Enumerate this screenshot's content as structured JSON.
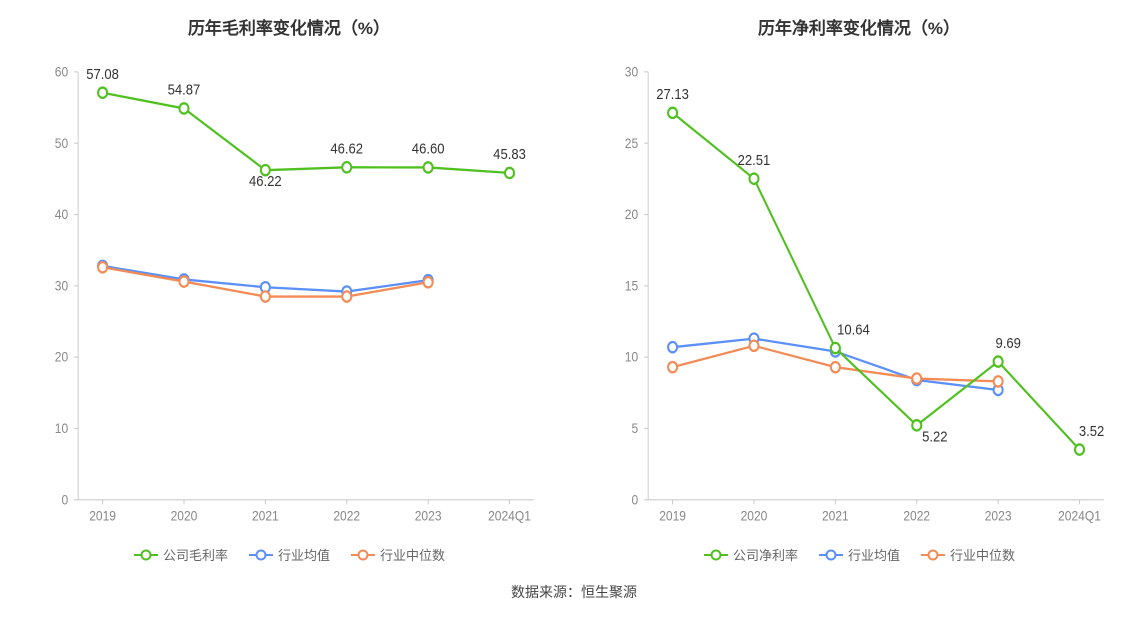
{
  "source_label": "数据来源：",
  "source_value": "恒生聚源",
  "colors": {
    "company": "#50c020",
    "industry_avg": "#5b8ff9",
    "industry_median": "#f28b55",
    "axis_line": "#cccccc",
    "axis_text": "#888888",
    "title_text": "#333333",
    "datalabel_text": "#333333",
    "background": "#ffffff"
  },
  "marker": {
    "radius": 4.5,
    "inner_fill": "#ffffff",
    "stroke_width": 2
  },
  "line_width": 2,
  "font": {
    "title_size": 17,
    "title_weight": 700,
    "axis_size": 12,
    "datalabel_size": 13,
    "legend_size": 13
  },
  "charts": [
    {
      "id": "gross_margin",
      "title": "历年毛利率变化情况（%）",
      "categories": [
        "2019",
        "2020",
        "2021",
        "2022",
        "2023",
        "2024Q1"
      ],
      "y": {
        "min": 0,
        "max": 60,
        "ticks": [
          0,
          10,
          20,
          30,
          40,
          50,
          60
        ]
      },
      "series": [
        {
          "key": "company",
          "label": "公司毛利率",
          "color_key": "company",
          "values": [
            57.08,
            54.87,
            46.22,
            46.62,
            46.6,
            45.83
          ],
          "show_value_labels": true,
          "value_label_dy": [
            -12,
            -12,
            14,
            -12,
            -12,
            -12
          ]
        },
        {
          "key": "industry_avg",
          "label": "行业均值",
          "color_key": "industry_avg",
          "values": [
            32.8,
            30.9,
            29.8,
            29.2,
            30.8,
            null
          ],
          "show_value_labels": false
        },
        {
          "key": "industry_median",
          "label": "行业中位数",
          "color_key": "industry_median",
          "values": [
            32.6,
            30.6,
            28.5,
            28.5,
            30.5,
            null
          ],
          "show_value_labels": false
        }
      ],
      "legend": [
        "公司毛利率",
        "行业均值",
        "行业中位数"
      ]
    },
    {
      "id": "net_margin",
      "title": "历年净利率变化情况（%）",
      "categories": [
        "2019",
        "2020",
        "2021",
        "2022",
        "2023",
        "2024Q1"
      ],
      "y": {
        "min": 0,
        "max": 30,
        "ticks": [
          0,
          5,
          10,
          15,
          20,
          25,
          30
        ]
      },
      "series": [
        {
          "key": "company",
          "label": "公司净利率",
          "color_key": "company",
          "values": [
            27.13,
            22.51,
            10.64,
            5.22,
            9.69,
            3.52
          ],
          "show_value_labels": true,
          "value_label_dy": [
            -12,
            -12,
            -12,
            14,
            -12,
            -12
          ],
          "value_label_dx": [
            0,
            0,
            18,
            18,
            10,
            12
          ]
        },
        {
          "key": "industry_avg",
          "label": "行业均值",
          "color_key": "industry_avg",
          "values": [
            10.7,
            11.3,
            10.4,
            8.4,
            7.7,
            null
          ],
          "show_value_labels": false
        },
        {
          "key": "industry_median",
          "label": "行业中位数",
          "color_key": "industry_median",
          "values": [
            9.3,
            10.8,
            9.3,
            8.5,
            8.3,
            null
          ],
          "show_value_labels": false
        }
      ],
      "legend": [
        "公司净利率",
        "行业均值",
        "行业中位数"
      ]
    }
  ]
}
